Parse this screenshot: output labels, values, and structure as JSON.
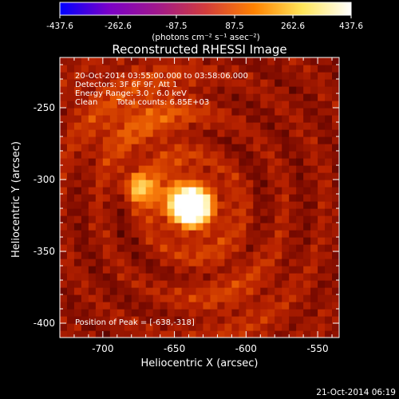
{
  "colorbar": {
    "tick_labels": [
      "-437.6",
      "-262.6",
      "-87.5",
      "87.5",
      "262.6",
      "437.6"
    ],
    "unit_label": "(photons cm⁻² s⁻¹ asec⁻²)",
    "range": [
      -437.6,
      437.6
    ]
  },
  "title": "Reconstructed RHESSI Image",
  "annotations": {
    "line1": "20-Oct-2014 03:55:00.000 to 03:58:06.000",
    "line2": "Detectors: 3F 6F 9F, Att 1",
    "line3": "Energy Range: 3.0 - 6.0 keV",
    "line4_a": "Clean",
    "line4_b": "Total counts: 6.85E+03",
    "peak": "Position of Peak = [-638,-318]"
  },
  "footer": {
    "timestamp": "21-Oct-2014 06:19"
  },
  "chart_data": {
    "type": "heatmap",
    "title": "Reconstructed RHESSI Image",
    "xlabel": "Heliocentric X (arcsec)",
    "ylabel": "Heliocentric Y (arcsec)",
    "xlim": [
      -730,
      -535
    ],
    "ylim": [
      -410,
      -215
    ],
    "x_ticks": [
      "-700",
      "-650",
      "-600",
      "-550"
    ],
    "y_ticks": [
      "-250",
      "-300",
      "-350",
      "-400"
    ],
    "x_tick_values": [
      -700,
      -650,
      -600,
      -550
    ],
    "y_tick_values": [
      -250,
      -300,
      -350,
      -400
    ],
    "peak": {
      "x": -638,
      "y": -318
    },
    "secondary_source": {
      "x": -675,
      "y": -305
    },
    "colormap": [
      "#000000",
      "#3a0000",
      "#7a0a00",
      "#b82200",
      "#e25000",
      "#ff8c10",
      "#ffc040",
      "#ffee90",
      "#ffffff"
    ],
    "colorbar_colors": [
      "#0000ff",
      "#7a00c8",
      "#a0188c",
      "#d23c3c",
      "#ff8200",
      "#ffe65a",
      "#ffffff"
    ]
  }
}
